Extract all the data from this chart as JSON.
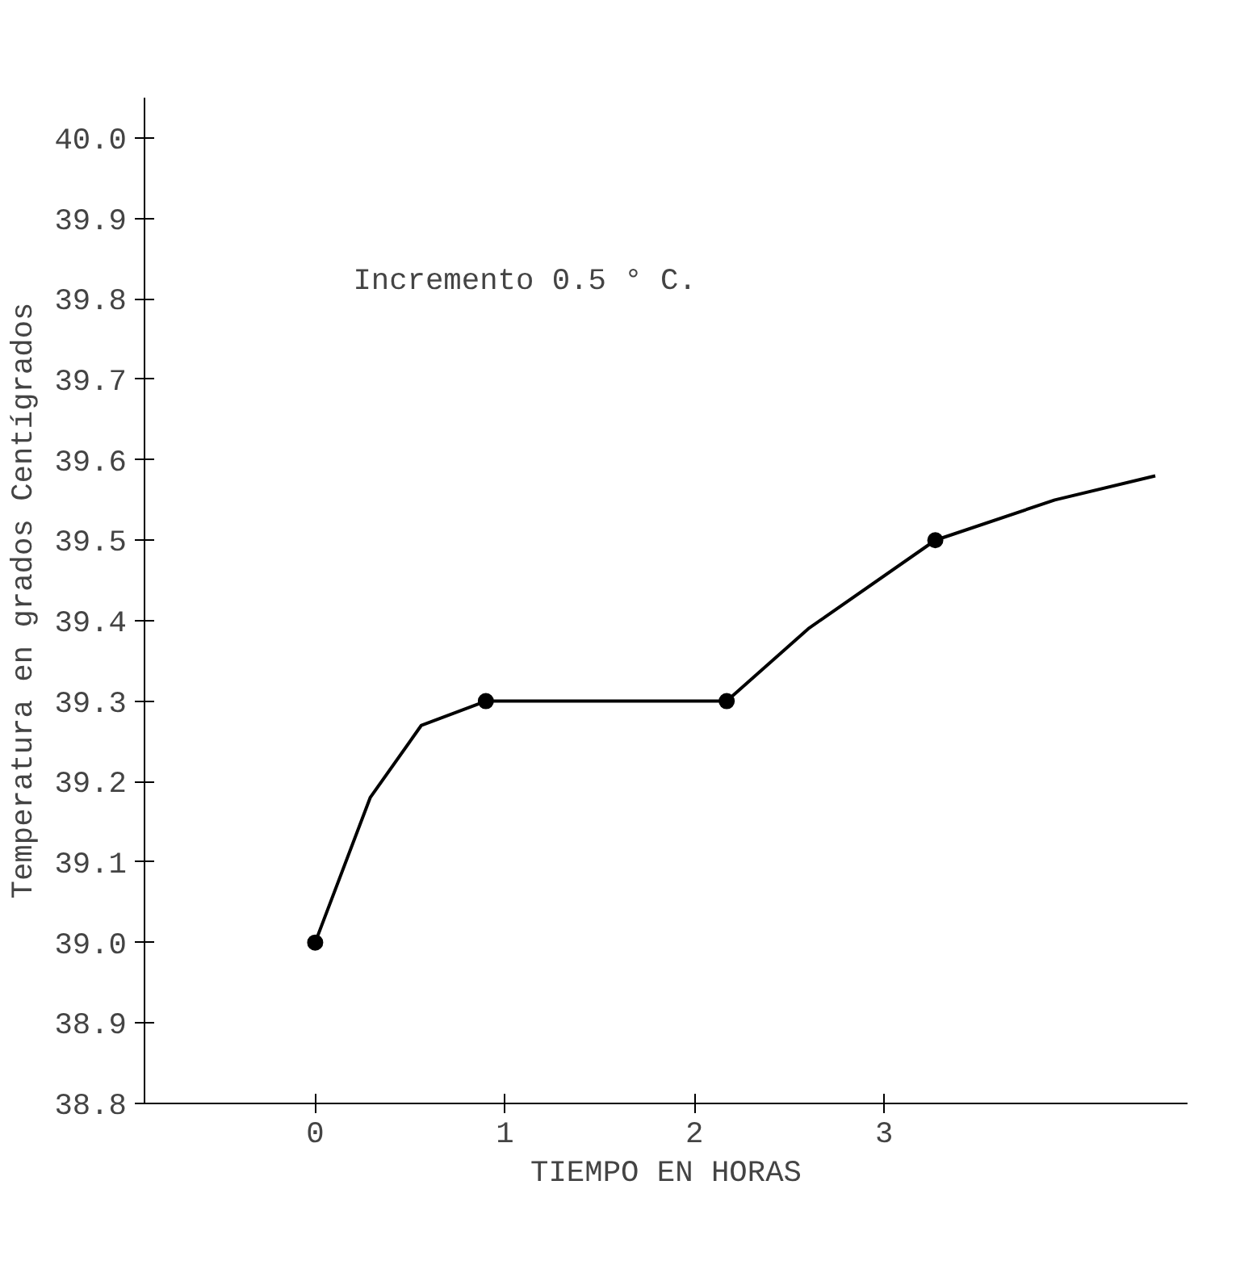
{
  "chart_data": {
    "type": "line",
    "xlabel": "TIEMPO EN HORAS",
    "ylabel": "Temperatura en grados Centígrados",
    "annotations": [
      "Incremento 0.5 ° C."
    ],
    "series": [
      {
        "color": "#000000",
        "marker": "none",
        "x": [
          0,
          0.29,
          0.56,
          0.9,
          1.5,
          2.17,
          2.6,
          3.27,
          3.9,
          4.43
        ],
        "values": [
          39.0,
          39.18,
          39.27,
          39.3,
          39.3,
          39.3,
          39.39,
          39.5,
          39.55,
          39.58
        ]
      },
      {
        "type": "scatter",
        "color": "#000000",
        "marker": "circle",
        "x": [
          0,
          0.9,
          2.17,
          3.27
        ],
        "values": [
          39.0,
          39.3,
          39.3,
          39.5
        ]
      }
    ],
    "xlim": [
      -0.9,
      4.6
    ],
    "xticks": [
      0,
      1,
      2,
      3
    ],
    "ylim": [
      38.8,
      40.05
    ],
    "yticks": [
      38.8,
      38.9,
      {
        "value": 39.0,
        "label": "39.0"
      },
      39.1,
      39.2,
      39.3,
      39.4,
      39.5,
      39.6,
      39.7,
      39.8,
      39.9,
      {
        "value": 40.0,
        "label": "40.0"
      }
    ],
    "grid": false
  }
}
